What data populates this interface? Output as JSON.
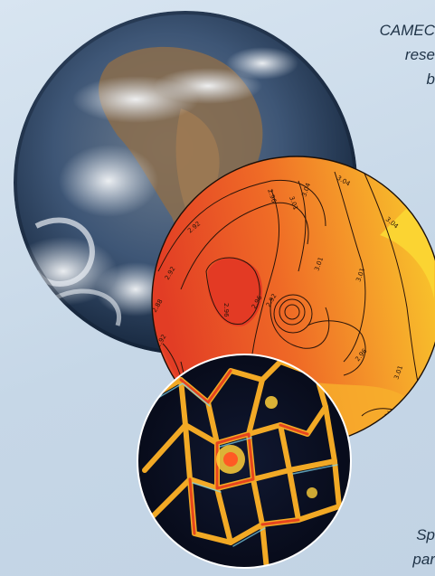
{
  "captions": {
    "top": [
      "CAMEC",
      "rese",
      "b"
    ],
    "bottom": [
      "Sp",
      "par"
    ]
  },
  "contour_labels": [
    "2.92",
    "2.96",
    "3.01",
    "3.04",
    "2.92",
    "2.96",
    "3.01",
    "3.04",
    "2.88",
    "2.92",
    "2.96",
    "2.92",
    "3.01",
    "3.04",
    "3.01",
    "2.96",
    "2.88"
  ],
  "colors": {
    "background": "#ccdbe9",
    "caption_text": "#1f3347",
    "contour_hot": "#e4442a",
    "contour_warm": "#f08a2a",
    "contour_cool": "#f8c72c",
    "earth_ocean": "#2f4f7a",
    "earth_land": "#8a6a4a",
    "granulation_dark": "#0c1022",
    "granulation_bright": "#ffb326"
  },
  "images": {
    "earth": "earth-globe-photo",
    "contour": "contour-map-disc",
    "granulation": "convection-cells-image"
  }
}
